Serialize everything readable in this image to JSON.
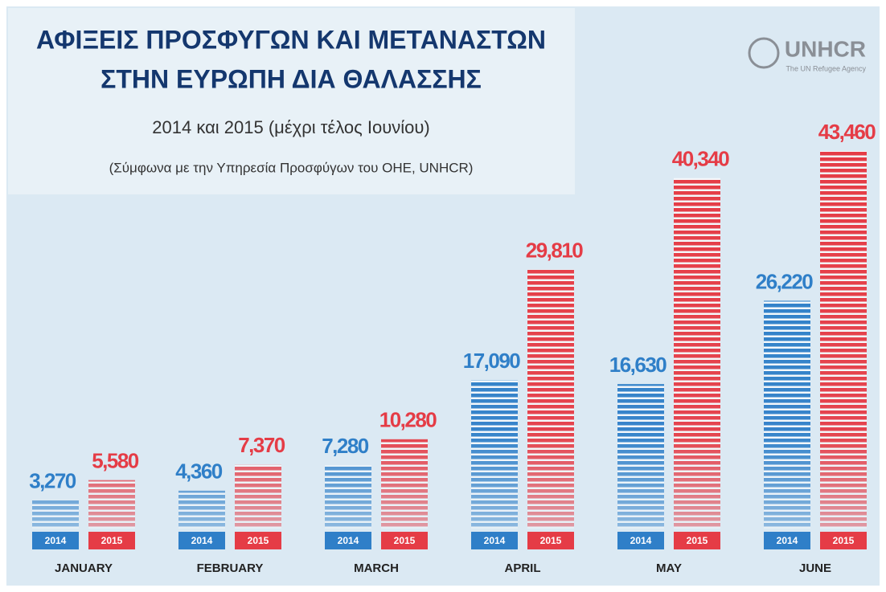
{
  "chart_data": {
    "type": "bar",
    "title": [
      "ΑΦΙΞΕΙΣ ΠΡΟΣΦΥΓΩΝ ΚΑΙ ΜΕΤΑΝΑΣΤΩΝ",
      "ΣΤΗΝ ΕΥΡΩΠΗ ΔΙΑ ΘΑΛΑΣΣΗΣ"
    ],
    "subtitle": "2014 και 2015 (μέχρι τέλος Ιουνίου)",
    "source": "(Σύμφωνα με την Υπηρεσία Προσφύγων του ΟΗΕ, UNHCR)",
    "logo": {
      "name": "UNHCR",
      "tagline": "The UN Refugee Agency"
    },
    "categories": [
      "JANUARY",
      "FEBRUARY",
      "MARCH",
      "APRIL",
      "MAY",
      "JUNE"
    ],
    "series": [
      {
        "name": "2014",
        "color": "#2f7fc8",
        "values": [
          3270,
          4360,
          7280,
          17090,
          16630,
          26220
        ],
        "value_labels": [
          "3,270",
          "4,360",
          "7,280",
          "17,090",
          "16,630",
          "26,220"
        ]
      },
      {
        "name": "2015",
        "color": "#e53c46",
        "values": [
          5580,
          7370,
          10280,
          29810,
          40340,
          43460
        ],
        "value_labels": [
          "5,580",
          "7,370",
          "10,280",
          "29,810",
          "40,340",
          "43,460"
        ]
      }
    ]
  }
}
